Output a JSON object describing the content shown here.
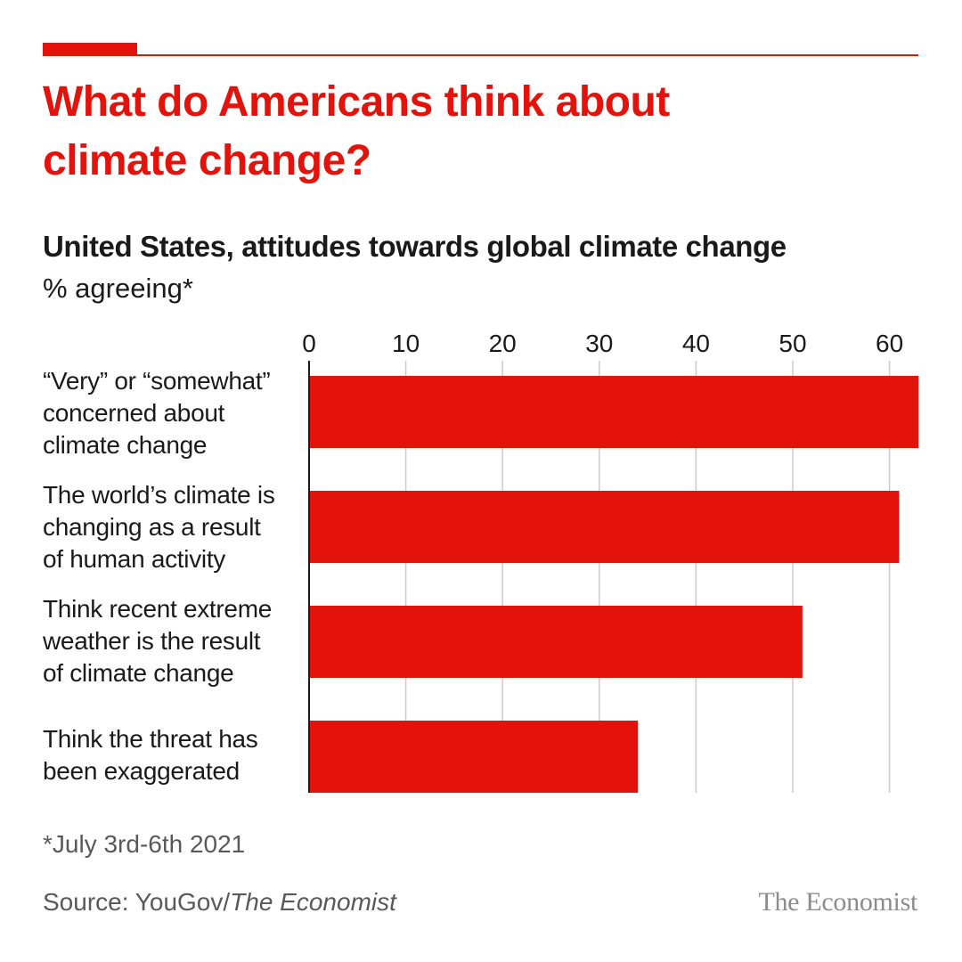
{
  "title": "What do Americans think about climate change?",
  "subtitle": "United States, attitudes towards global climate change",
  "unit": "% agreeing*",
  "footnote": "*July 3rd-6th 2021",
  "source": {
    "prefix": "Source: YouGov/",
    "italic": "The Economist"
  },
  "logo": "The Economist",
  "colors": {
    "accent": "#e3120b",
    "bar": "#e3120b",
    "grid": "#cccccc"
  },
  "chart_data": {
    "type": "bar",
    "orientation": "horizontal",
    "title": "What do Americans think about climate change?",
    "subtitle": "United States, attitudes towards global climate change",
    "xlabel": "% agreeing*",
    "ylabel": "",
    "xlim": [
      0,
      63
    ],
    "ticks": [
      0,
      10,
      20,
      30,
      40,
      50,
      60
    ],
    "grid": true,
    "categories": [
      "“Very” or “somewhat” concerned about climate change",
      "The world’s climate is changing as a result of human activity",
      "Think recent extreme weather is the result of climate change",
      "Think the threat has been exaggerated"
    ],
    "label_lines": [
      [
        "“Very” or “somewhat”",
        "concerned about",
        "climate change"
      ],
      [
        "The world’s climate is",
        "changing as a result",
        "of human activity"
      ],
      [
        "Think recent extreme",
        "weather is the result",
        "of climate change"
      ],
      [
        "Think the threat has",
        "been exaggerated"
      ]
    ],
    "values": [
      63,
      61,
      51,
      34
    ]
  }
}
